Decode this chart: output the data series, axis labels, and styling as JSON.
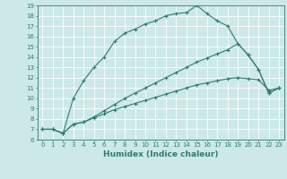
{
  "xlabel": "Humidex (Indice chaleur)",
  "bg_color": "#cce8e8",
  "grid_color": "#ffffff",
  "line_color": "#2e7d6e",
  "xlim": [
    -0.5,
    23.5
  ],
  "ylim": [
    6,
    19
  ],
  "xticks": [
    0,
    1,
    2,
    3,
    4,
    5,
    6,
    7,
    8,
    9,
    10,
    11,
    12,
    13,
    14,
    15,
    16,
    17,
    18,
    19,
    20,
    21,
    22,
    23
  ],
  "yticks": [
    6,
    7,
    8,
    9,
    10,
    11,
    12,
    13,
    14,
    15,
    16,
    17,
    18,
    19
  ],
  "line1_x": [
    0,
    1,
    2,
    3,
    4,
    5,
    6,
    7,
    8,
    9,
    10,
    11,
    12,
    13,
    14,
    15,
    16,
    17,
    18,
    19,
    20,
    21,
    22,
    23
  ],
  "line1_y": [
    7.0,
    7.0,
    6.6,
    10.0,
    11.7,
    13.0,
    14.0,
    15.5,
    16.3,
    16.7,
    17.2,
    17.5,
    18.0,
    18.2,
    18.3,
    19.0,
    18.2,
    17.5,
    17.0,
    15.3,
    14.2,
    12.8,
    10.5,
    11.0
  ],
  "line2_x": [
    0,
    1,
    2,
    3,
    4,
    5,
    6,
    7,
    8,
    9,
    10,
    11,
    12,
    13,
    14,
    15,
    16,
    17,
    18,
    19,
    20,
    21,
    22,
    23
  ],
  "line2_y": [
    7.0,
    7.0,
    6.6,
    7.5,
    7.7,
    8.1,
    8.5,
    8.9,
    9.2,
    9.5,
    9.8,
    10.1,
    10.4,
    10.7,
    11.0,
    11.3,
    11.5,
    11.7,
    11.9,
    12.0,
    11.9,
    11.8,
    10.8,
    11.0
  ],
  "line3_x": [
    0,
    1,
    2,
    3,
    4,
    5,
    6,
    7,
    8,
    9,
    10,
    11,
    12,
    13,
    14,
    15,
    16,
    17,
    18,
    19,
    20,
    21,
    22,
    23
  ],
  "line3_y": [
    7.0,
    7.0,
    6.6,
    7.5,
    7.7,
    8.2,
    8.8,
    9.4,
    10.0,
    10.5,
    11.0,
    11.5,
    12.0,
    12.5,
    13.0,
    13.5,
    13.9,
    14.3,
    14.7,
    15.3,
    14.2,
    12.8,
    10.5,
    11.0
  ],
  "xlabel_fontsize": 6.5,
  "tick_fontsize": 5.0
}
